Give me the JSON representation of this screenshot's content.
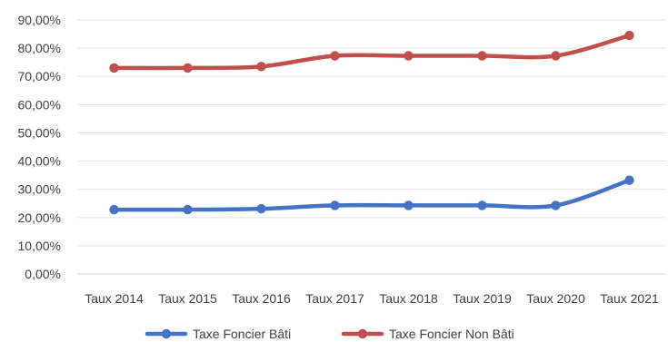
{
  "chart_data": {
    "type": "line",
    "categories": [
      "Taux 2014",
      "Taux 2015",
      "Taux 2016",
      "Taux 2017",
      "Taux 2018",
      "Taux 2019",
      "Taux 2020",
      "Taux 2021"
    ],
    "series": [
      {
        "name": "Taxe Foncier Bâti",
        "color": "#4472C4",
        "values": [
          22.8,
          22.8,
          23.1,
          24.3,
          24.3,
          24.3,
          24.3,
          33.2
        ]
      },
      {
        "name": "Taxe Foncier Non Bâti",
        "color": "#C0504D",
        "values": [
          73.0,
          73.0,
          73.5,
          77.3,
          77.3,
          77.3,
          77.3,
          84.5
        ]
      }
    ],
    "ylim": [
      0,
      90
    ],
    "yticks": [
      0,
      10,
      20,
      30,
      40,
      50,
      60,
      70,
      80,
      90
    ],
    "ytick_labels": [
      "0,00%",
      "10,00%",
      "20,00%",
      "30,00%",
      "40,00%",
      "50,00%",
      "60,00%",
      "70,00%",
      "80,00%",
      "90,00%"
    ],
    "grid": true,
    "legend_position": "bottom"
  }
}
